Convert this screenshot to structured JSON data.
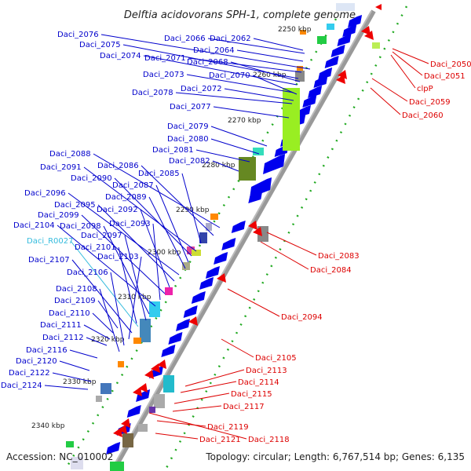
{
  "title": "Delftia acidovorans SPH-1, complete genome",
  "footer": {
    "accession": "Accession: NC_010002",
    "stats": "Topology: circular; Length: 6,767,514 bp; Genes: 6,135"
  },
  "colors": {
    "backbone": "#999999",
    "forward_label": "#0000cc",
    "reverse_label": "#dd0000",
    "rna_label": "#33bbdd",
    "forward_gene": "#0000ee",
    "reverse_gene": "#ee0000",
    "tick": "#22aa22"
  },
  "kbp_ticks": [
    "2250 kbp",
    "2260 kbp",
    "2270 kbp",
    "2280 kbp",
    "2290 kbp",
    "2300 kbp",
    "2310 kbp",
    "2320 kbp",
    "2330 kbp",
    "2340 kbp"
  ],
  "left_labels": [
    "Daci_2076",
    "Daci_2075",
    "Daci_2074",
    "Daci_2073",
    "Daci_2078",
    "Daci_2066",
    "Daci_2062",
    "Daci_2064",
    "Daci_2071",
    "Daci_2068",
    "Daci_2070",
    "Daci_2072",
    "Daci_2077",
    "Daci_2079",
    "Daci_2080",
    "Daci_2081",
    "Daci_2082",
    "Daci_2088",
    "Daci_2086",
    "Daci_2085",
    "Daci_2091",
    "Daci_2090",
    "Daci_2087",
    "Daci_2089",
    "Daci_2096",
    "Daci_2095",
    "Daci_2092",
    "Daci_2099",
    "Daci_2093",
    "Daci_2104",
    "Daci_2098",
    "Daci_2097",
    "Daci_R0027",
    "Daci_2101",
    "Daci_2107",
    "Daci_2103",
    "Daci_2106",
    "Daci_2108",
    "Daci_2109",
    "Daci_2110",
    "Daci_2111",
    "Daci_2112",
    "Daci_2116",
    "Daci_2120",
    "Daci_2122",
    "Daci_2124"
  ],
  "right_labels": [
    "Daci_2050",
    "Daci_2051",
    "clpP",
    "Daci_2059",
    "Daci_2060",
    "Daci_2083",
    "Daci_2084",
    "Daci_2094",
    "Daci_2105",
    "Daci_2113",
    "Daci_2114",
    "Daci_2115",
    "Daci_2117",
    "Daci_2119",
    "Daci_2121",
    "Daci_2118"
  ]
}
